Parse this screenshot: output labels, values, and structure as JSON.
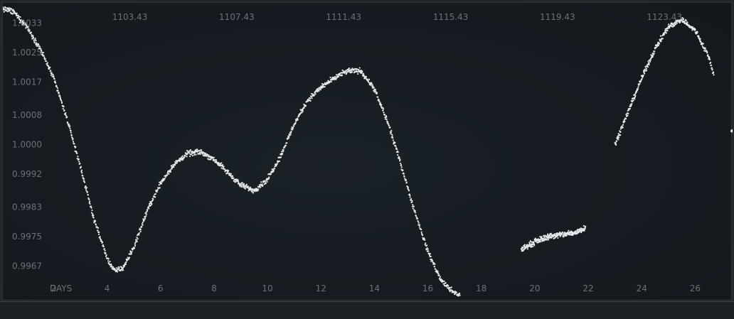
{
  "chart_data": {
    "type": "scatter",
    "xlabel": "DAYS",
    "x_ticks_bottom": [
      "2",
      "4",
      "6",
      "8",
      "10",
      "12",
      "14",
      "16",
      "18",
      "20",
      "22",
      "24",
      "26"
    ],
    "x_ticks_top": [
      "1103.43",
      "1107.43",
      "1111.43",
      "1115.43",
      "1119.43",
      "1123.43"
    ],
    "y_ticks": [
      "1.0033",
      "1.0025",
      "1.0017",
      "1.0008",
      "1.0000",
      "0.9992",
      "0.9983",
      "0.9975",
      "0.9967"
    ],
    "xlim": [
      0.1,
      27.4
    ],
    "ylim": [
      0.99574,
      1.00385
    ],
    "grid": false,
    "point_color": "#e6e9eb",
    "curve": [
      [
        0.1,
        1.0037
      ],
      [
        0.5,
        1.0036
      ],
      [
        1.0,
        1.0032
      ],
      [
        1.5,
        1.0026
      ],
      [
        2.0,
        1.0018
      ],
      [
        2.5,
        1.0007
      ],
      [
        3.0,
        0.9994
      ],
      [
        3.5,
        0.998
      ],
      [
        4.0,
        0.9969
      ],
      [
        4.3,
        0.99655
      ],
      [
        4.6,
        0.99665
      ],
      [
        5.0,
        0.9972
      ],
      [
        5.5,
        0.9982
      ],
      [
        6.0,
        0.99895
      ],
      [
        6.5,
        0.99945
      ],
      [
        7.0,
        0.99975
      ],
      [
        7.5,
        0.9998
      ],
      [
        8.0,
        0.9996
      ],
      [
        8.5,
        0.99925
      ],
      [
        9.0,
        0.9989
      ],
      [
        9.5,
        0.99875
      ],
      [
        10.0,
        0.99905
      ],
      [
        10.5,
        0.9997
      ],
      [
        11.0,
        1.00055
      ],
      [
        11.5,
        1.0012
      ],
      [
        12.0,
        1.00155
      ],
      [
        12.5,
        1.0018
      ],
      [
        13.0,
        1.002
      ],
      [
        13.5,
        1.002
      ],
      [
        14.0,
        1.0015
      ],
      [
        14.5,
        1.0006
      ],
      [
        15.0,
        0.99945
      ],
      [
        15.5,
        0.9982
      ],
      [
        16.0,
        0.9971
      ],
      [
        16.5,
        0.9963
      ],
      [
        17.0,
        0.99595
      ],
      [
        17.2,
        0.9959
      ]
    ],
    "segment_2": [
      [
        19.5,
        0.99715
      ],
      [
        20.0,
        0.99735
      ],
      [
        20.5,
        0.9975
      ],
      [
        21.0,
        0.99755
      ],
      [
        21.5,
        0.9976
      ],
      [
        21.9,
        0.99775
      ]
    ],
    "segment_3": [
      [
        23.0,
        1.0
      ],
      [
        23.5,
        1.0009
      ],
      [
        24.0,
        1.0018
      ],
      [
        24.5,
        1.0026
      ],
      [
        25.0,
        1.0032
      ],
      [
        25.5,
        1.0034
      ],
      [
        26.0,
        1.0031
      ],
      [
        26.5,
        1.0024
      ],
      [
        26.7,
        1.0019
      ]
    ],
    "segment_4": [
      [
        27.35,
        1.00035
      ],
      [
        27.45,
        1.0004
      ]
    ]
  }
}
